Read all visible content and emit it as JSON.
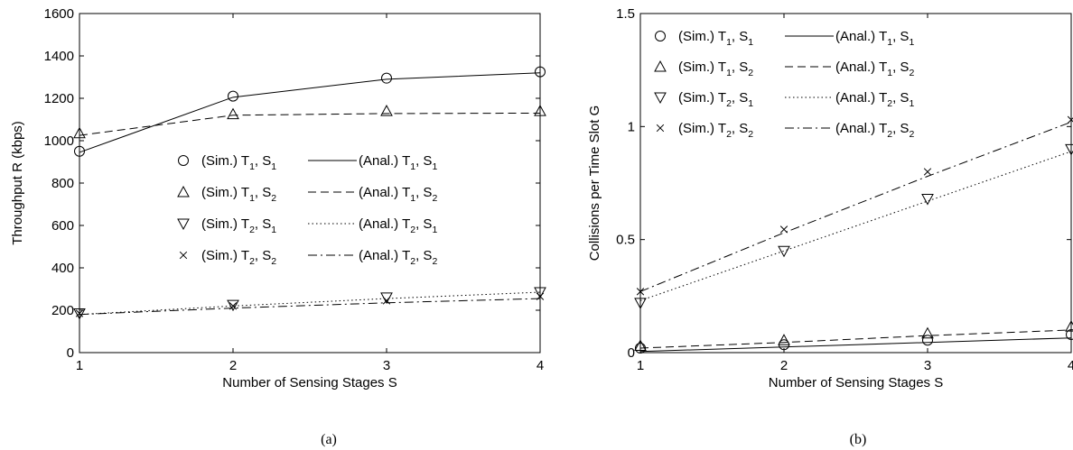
{
  "chart_data": [
    {
      "type": "line",
      "caption": "(a)",
      "xlabel": "Number of Sensing Stages S",
      "ylabel": "Throughput R (kbps)",
      "xlim": [
        1,
        4
      ],
      "ylim": [
        0,
        1600
      ],
      "x_ticks": [
        "1",
        "2",
        "3",
        "4"
      ],
      "y_ticks": [
        "0",
        "200",
        "400",
        "600",
        "800",
        "1000",
        "1200",
        "1400",
        "1600"
      ],
      "grid": false,
      "legend_position": "center-right",
      "x": [
        1,
        2,
        3,
        4
      ],
      "series": [
        {
          "key": "T1S1",
          "marker": "circle",
          "line": "solid",
          "sim_label": {
            "pre": "(Sim.) T",
            "s1": "1",
            "mid": ", S",
            "s2": "1"
          },
          "anal_label": {
            "pre": "(Anal.) T",
            "s1": "1",
            "mid": ", S",
            "s2": "1"
          },
          "sim": [
            950,
            1210,
            1295,
            1325
          ],
          "anal": [
            945,
            1205,
            1290,
            1320
          ]
        },
        {
          "key": "T1S2",
          "marker": "triangle-up",
          "line": "dashed",
          "sim_label": {
            "pre": "(Sim.) T",
            "s1": "1",
            "mid": ", S",
            "s2": "2"
          },
          "anal_label": {
            "pre": "(Anal.) T",
            "s1": "1",
            "mid": ", S",
            "s2": "2"
          },
          "sim": [
            1035,
            1125,
            1140,
            1140
          ],
          "anal": [
            1025,
            1120,
            1128,
            1130
          ]
        },
        {
          "key": "T2S1",
          "marker": "triangle-down",
          "line": "dotted",
          "sim_label": {
            "pre": "(Sim.) T",
            "s1": "2",
            "mid": ", S",
            "s2": "1"
          },
          "anal_label": {
            "pre": "(Anal.) T",
            "s1": "2",
            "mid": ", S",
            "s2": "1"
          },
          "sim": [
            185,
            225,
            260,
            285
          ],
          "anal": [
            180,
            220,
            255,
            285
          ]
        },
        {
          "key": "T2S2",
          "marker": "x",
          "line": "dashdot",
          "sim_label": {
            "pre": "(Sim.) T",
            "s1": "2",
            "mid": ", S",
            "s2": "2"
          },
          "anal_label": {
            "pre": "(Anal.) T",
            "s1": "2",
            "mid": ", S",
            "s2": "2"
          },
          "sim": [
            185,
            220,
            245,
            265
          ],
          "anal": [
            180,
            210,
            235,
            255
          ]
        }
      ]
    },
    {
      "type": "line",
      "caption": "(b)",
      "xlabel": "Number of Sensing Stages S",
      "ylabel": "Collisions per Time Slot G",
      "xlim": [
        1,
        4
      ],
      "ylim": [
        0,
        1.5
      ],
      "x_ticks": [
        "1",
        "2",
        "3",
        "4"
      ],
      "y_ticks": [
        "0",
        "0.5",
        "1",
        "1.5"
      ],
      "grid": false,
      "legend_position": "top-left",
      "x": [
        1,
        2,
        3,
        4
      ],
      "series": [
        {
          "key": "T1S1",
          "marker": "circle",
          "line": "solid",
          "sim_label": {
            "pre": "(Sim.) T",
            "s1": "1",
            "mid": ", S",
            "s2": "1"
          },
          "anal_label": {
            "pre": "(Anal.) T",
            "s1": "1",
            "mid": ", S",
            "s2": "1"
          },
          "sim": [
            0.02,
            0.035,
            0.055,
            0.08
          ],
          "anal": [
            0.005,
            0.025,
            0.045,
            0.065
          ]
        },
        {
          "key": "T1S2",
          "marker": "triangle-up",
          "line": "dashed",
          "sim_label": {
            "pre": "(Sim.) T",
            "s1": "1",
            "mid": ", S",
            "s2": "2"
          },
          "anal_label": {
            "pre": "(Anal.) T",
            "s1": "1",
            "mid": ", S",
            "s2": "2"
          },
          "sim": [
            0.03,
            0.055,
            0.085,
            0.115
          ],
          "anal": [
            0.02,
            0.045,
            0.075,
            0.1
          ]
        },
        {
          "key": "T2S1",
          "marker": "triangle-down",
          "line": "dotted",
          "sim_label": {
            "pre": "(Sim.) T",
            "s1": "2",
            "mid": ", S",
            "s2": "1"
          },
          "anal_label": {
            "pre": "(Anal.) T",
            "s1": "2",
            "mid": ", S",
            "s2": "1"
          },
          "sim": [
            0.22,
            0.45,
            0.68,
            0.9
          ],
          "anal": [
            0.23,
            0.45,
            0.67,
            0.89
          ]
        },
        {
          "key": "T2S2",
          "marker": "x",
          "line": "dashdot",
          "sim_label": {
            "pre": "(Sim.) T",
            "s1": "2",
            "mid": ", S",
            "s2": "2"
          },
          "anal_label": {
            "pre": "(Anal.) T",
            "s1": "2",
            "mid": ", S",
            "s2": "2"
          },
          "sim": [
            0.27,
            0.545,
            0.8,
            1.03
          ],
          "anal": [
            0.27,
            0.53,
            0.78,
            1.02
          ]
        }
      ]
    }
  ]
}
